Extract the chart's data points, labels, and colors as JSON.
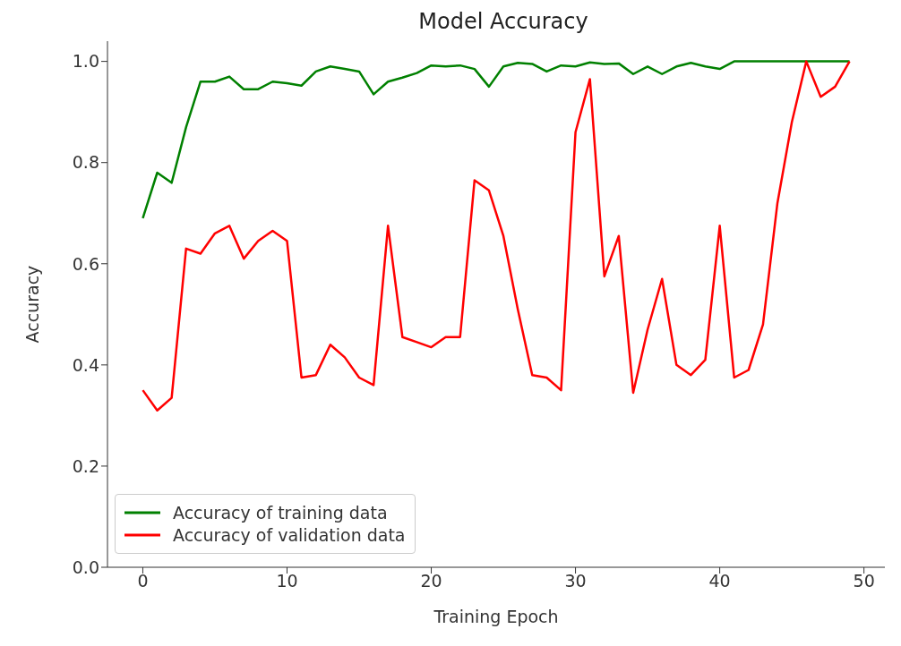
{
  "chart_data": {
    "type": "line",
    "title": "Model Accuracy",
    "xlabel": "Training Epoch",
    "ylabel": "Accuracy",
    "x": [
      0,
      1,
      2,
      3,
      4,
      5,
      6,
      7,
      8,
      9,
      10,
      11,
      12,
      13,
      14,
      15,
      16,
      17,
      18,
      19,
      20,
      21,
      22,
      23,
      24,
      25,
      26,
      27,
      28,
      29,
      30,
      31,
      32,
      33,
      34,
      35,
      36,
      37,
      38,
      39,
      40,
      41,
      42,
      43,
      44,
      45,
      46,
      47,
      48,
      49
    ],
    "series": [
      {
        "name": "Accuracy of training data",
        "color": "#008000",
        "values": [
          0.69,
          0.78,
          0.76,
          0.87,
          0.96,
          0.96,
          0.97,
          0.945,
          0.945,
          0.96,
          0.957,
          0.952,
          0.98,
          0.99,
          0.985,
          0.98,
          0.935,
          0.96,
          0.968,
          0.977,
          0.992,
          0.99,
          0.992,
          0.985,
          0.95,
          0.99,
          0.997,
          0.995,
          0.98,
          0.992,
          0.99,
          0.998,
          0.995,
          0.996,
          0.975,
          0.99,
          0.975,
          0.99,
          0.997,
          0.99,
          0.985,
          1.0,
          1.0,
          1.0,
          1.0,
          1.0,
          1.0,
          1.0,
          1.0,
          1.0
        ]
      },
      {
        "name": "Accuracy of validation data",
        "color": "#ff0000",
        "values": [
          0.35,
          0.31,
          0.335,
          0.63,
          0.62,
          0.66,
          0.675,
          0.61,
          0.645,
          0.665,
          0.645,
          0.375,
          0.38,
          0.44,
          0.415,
          0.375,
          0.36,
          0.675,
          0.455,
          0.445,
          0.435,
          0.455,
          0.455,
          0.765,
          0.745,
          0.655,
          0.51,
          0.38,
          0.375,
          0.35,
          0.86,
          0.965,
          0.575,
          0.655,
          0.345,
          0.47,
          0.57,
          0.4,
          0.38,
          0.41,
          0.675,
          0.375,
          0.39,
          0.48,
          0.72,
          0.88,
          1.0,
          0.93,
          0.95,
          1.0
        ]
      }
    ],
    "xlim": [
      -2.45,
      51.45
    ],
    "xticks": [
      0,
      10,
      20,
      30,
      40,
      50
    ],
    "ylim": [
      0,
      1.04
    ],
    "yticks": [
      {
        "value": 0,
        "label": "0.0"
      },
      0.2,
      0.4,
      0.6,
      0.8,
      {
        "value": 1,
        "label": "1.0"
      }
    ],
    "grid": false,
    "legend": "bottom left",
    "marker": "none",
    "line_style": "solid"
  }
}
